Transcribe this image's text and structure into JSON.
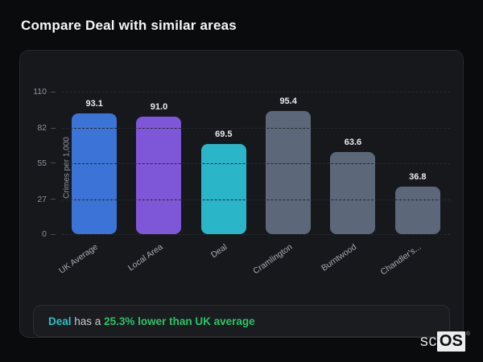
{
  "title": "Compare Deal with similar areas",
  "note": {
    "subject": "Deal",
    "connector": " has a ",
    "highlight": "25.3% lower than UK average"
  },
  "logo": {
    "prefix": "sc",
    "suffix": "OS",
    "registered": "®"
  },
  "colors": {
    "page_bg": "#0a0b0d",
    "card_bg": "#16181c",
    "bar_blue": "#3b73d6",
    "bar_purple": "#7e57d9",
    "bar_teal": "#2ab5c9",
    "bar_gray": "#5c6879",
    "note_green": "#2bc563",
    "note_teal": "#2dc0c9"
  },
  "chart_data": {
    "type": "bar",
    "categories": [
      "UK Average",
      "Local Area",
      "Deal",
      "Cramlington",
      "Burntwood",
      "Chandler's..."
    ],
    "values": [
      93.1,
      91.0,
      69.5,
      95.4,
      63.6,
      36.8
    ],
    "value_labels": [
      "93.1",
      "91.0",
      "69.5",
      "95.4",
      "63.6",
      "36.8"
    ],
    "bar_colors": [
      "#3b73d6",
      "#7e57d9",
      "#2ab5c9",
      "#5c6879",
      "#5c6879",
      "#5c6879"
    ],
    "title": "Compare Deal with similar areas",
    "xlabel": "",
    "ylabel": "Crimes per 1,000",
    "ylim": [
      0,
      110
    ],
    "yticks": [
      0,
      27,
      55,
      82,
      110
    ],
    "grid": "dashed-horizontal",
    "legend": "none"
  }
}
